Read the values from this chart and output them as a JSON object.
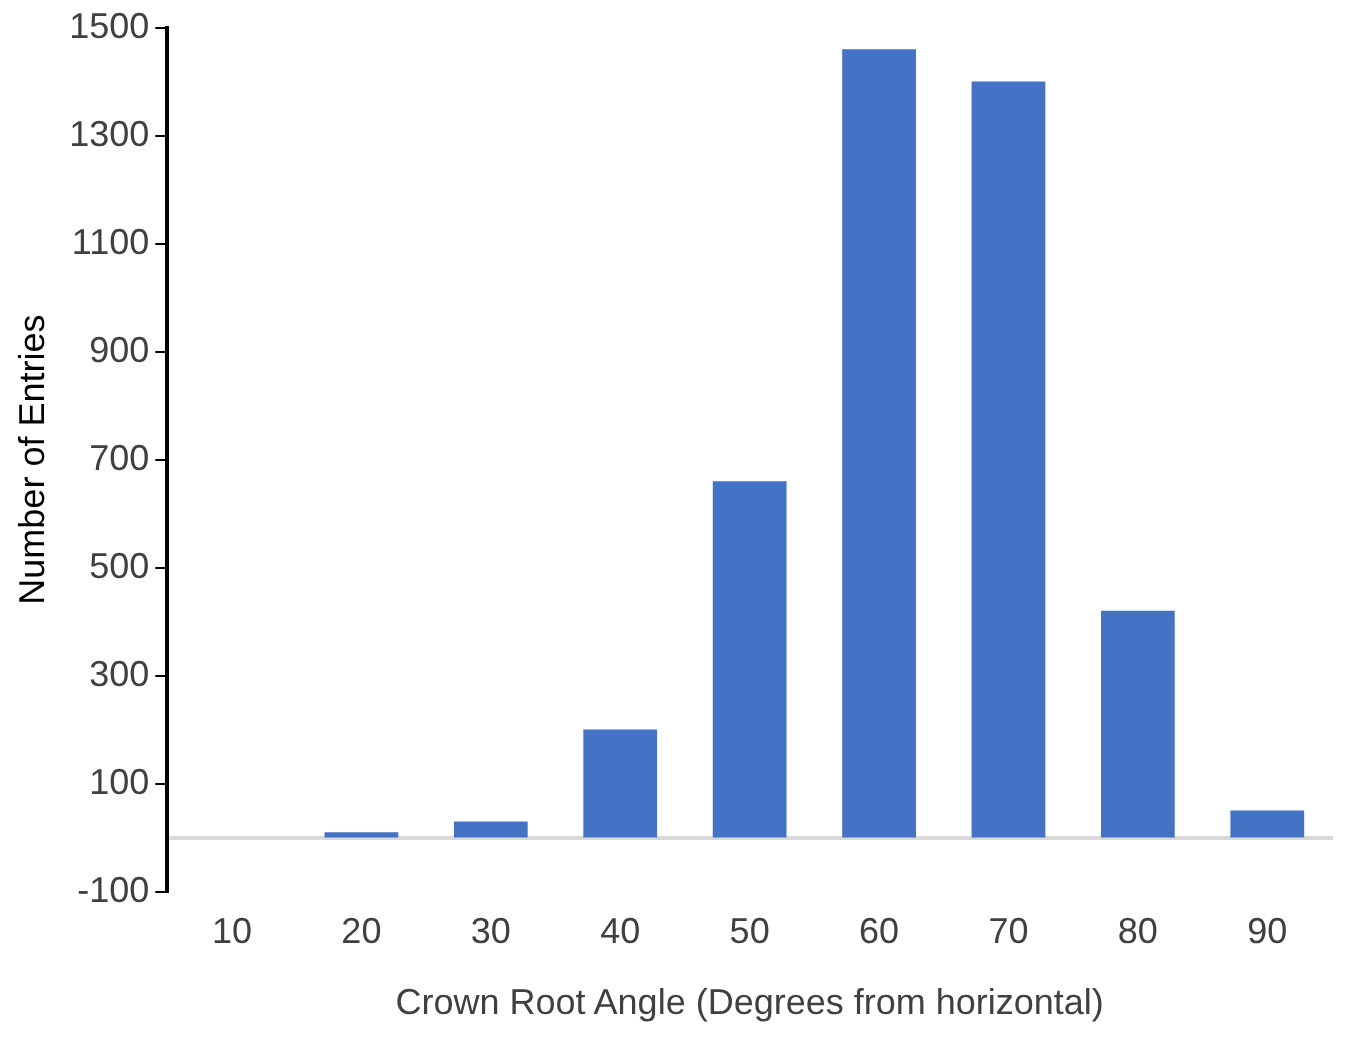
{
  "chart_data": {
    "type": "bar",
    "xlabel": "Crown Root Angle (Degrees from horizontal)",
    "ylabel": "Number of Entries",
    "categories": [
      "10",
      "20",
      "30",
      "40",
      "50",
      "60",
      "70",
      "80",
      "90"
    ],
    "values": [
      0,
      10,
      30,
      200,
      660,
      1460,
      1400,
      420,
      50
    ],
    "color": "#4472c4",
    "ylim": [
      -100,
      1500
    ],
    "yticks": [
      -100,
      100,
      300,
      500,
      700,
      900,
      1100,
      1300,
      1500
    ],
    "grid": false,
    "legend": false
  }
}
